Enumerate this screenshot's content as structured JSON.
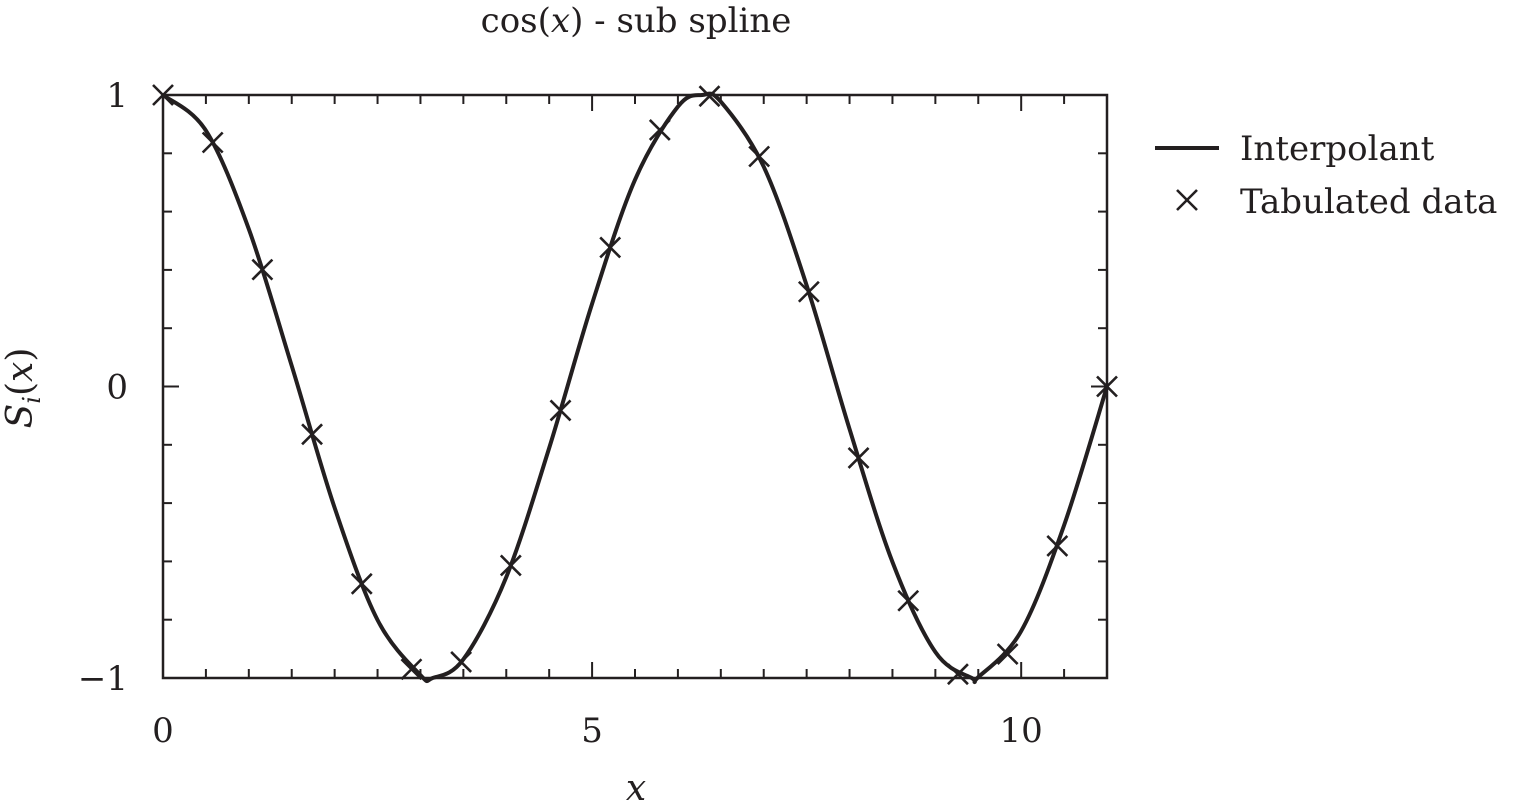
{
  "chart_data": {
    "type": "line",
    "title": "cos(x) - sub spline",
    "title_parts": {
      "func": "cos(",
      "var": "x",
      "rest": ") - sub spline"
    },
    "xlabel": "x",
    "ylabel": "S_i(x)",
    "ylabel_parts": {
      "S": "S",
      "sub": "i",
      "open": "(",
      "var": "x",
      "close": ")"
    },
    "xlim": [
      0,
      11
    ],
    "ylim": [
      -1,
      1
    ],
    "x_ticks": [
      0,
      5,
      10
    ],
    "x_tick_labels": [
      "0",
      "5",
      "10"
    ],
    "x_minor_step": 0.5,
    "y_ticks": [
      -1,
      0,
      1
    ],
    "y_tick_labels": [
      "−1",
      "0",
      "1"
    ],
    "y_minor_step": 0.2,
    "grid": false,
    "legend": {
      "placement": "right-outside-top",
      "entries": [
        "Interpolant",
        "Tabulated data"
      ]
    },
    "series": [
      {
        "name": "Interpolant",
        "style": "line",
        "x": [
          0,
          0.5,
          1.0,
          1.5,
          2.0,
          2.5,
          3.0,
          3.1416,
          3.5,
          4.0,
          4.5,
          5.0,
          5.5,
          6.0,
          6.2832,
          6.5,
          7.0,
          7.5,
          8.0,
          8.5,
          9.0,
          9.4248,
          9.5,
          10.0,
          10.5,
          11.0
        ],
        "y": [
          1.0,
          0.878,
          0.54,
          0.071,
          -0.416,
          -0.801,
          -0.99,
          -1.0,
          -0.936,
          -0.654,
          -0.211,
          0.284,
          0.709,
          0.96,
          1.0,
          0.977,
          0.754,
          0.347,
          -0.146,
          -0.602,
          -0.911,
          -1.0,
          -0.997,
          -0.839,
          -0.476,
          0.0
        ]
      },
      {
        "name": "Tabulated data",
        "style": "marker-x",
        "x": [
          0,
          0.579,
          1.158,
          1.737,
          2.316,
          2.895,
          3.474,
          4.053,
          4.632,
          5.211,
          5.789,
          6.368,
          6.947,
          7.526,
          8.105,
          8.684,
          9.263,
          9.842,
          10.421,
          11.0
        ],
        "y": [
          1.0,
          0.837,
          0.401,
          -0.164,
          -0.677,
          -0.97,
          -0.945,
          -0.614,
          -0.082,
          0.477,
          0.88,
          0.996,
          0.789,
          0.325,
          -0.245,
          -0.735,
          -0.987,
          -0.918,
          -0.547,
          0.0
        ]
      }
    ]
  }
}
